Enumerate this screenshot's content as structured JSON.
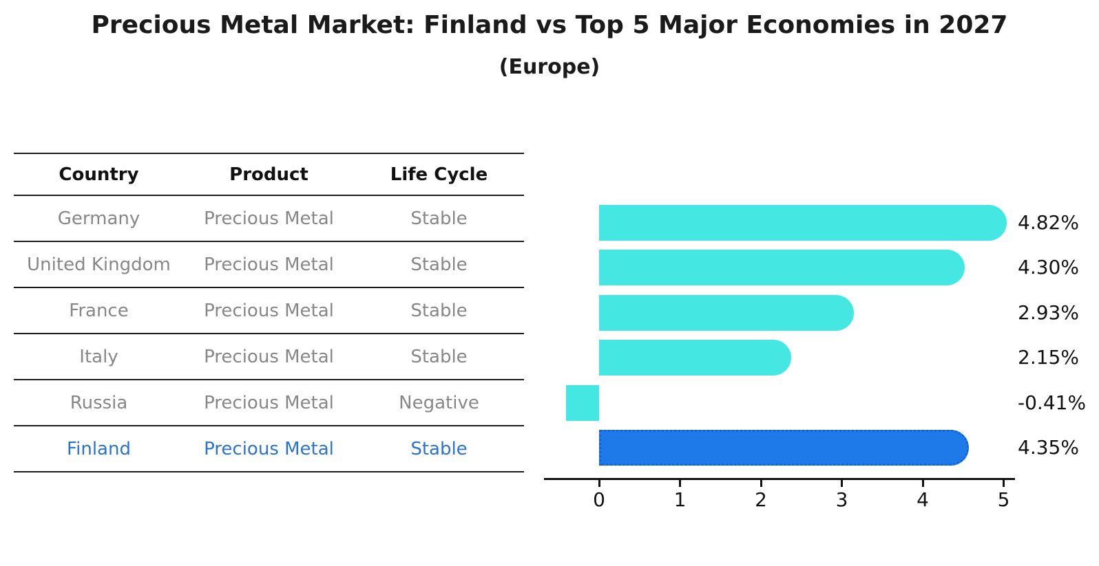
{
  "title": "Precious Metal Market: Finland vs Top 5 Major Economies in 2027",
  "subtitle": "(Europe)",
  "table": {
    "headers": [
      "Country",
      "Product",
      "Life Cycle"
    ],
    "rows": [
      {
        "country": "Germany",
        "product": "Precious Metal",
        "life_cycle": "Stable",
        "highlight": false
      },
      {
        "country": "United Kingdom",
        "product": "Precious Metal",
        "life_cycle": "Stable",
        "highlight": false
      },
      {
        "country": "France",
        "product": "Precious Metal",
        "life_cycle": "Stable",
        "highlight": false
      },
      {
        "country": "Italy",
        "product": "Precious Metal",
        "life_cycle": "Stable",
        "highlight": false
      },
      {
        "country": "Russia",
        "product": "Precious Metal",
        "life_cycle": "Negative",
        "highlight": false
      },
      {
        "country": "Finland",
        "product": "Precious Metal",
        "life_cycle": "Stable",
        "highlight": true
      }
    ]
  },
  "chart_data": {
    "type": "bar",
    "orientation": "horizontal",
    "categories": [
      "Germany",
      "United Kingdom",
      "France",
      "Italy",
      "Russia",
      "Finland"
    ],
    "values": [
      4.82,
      4.3,
      2.93,
      2.15,
      -0.41,
      4.35
    ],
    "value_labels": [
      "4.82%",
      "4.30%",
      "2.93%",
      "2.15%",
      "-0.41%",
      "4.35%"
    ],
    "xticks": [
      "0",
      "1",
      "2",
      "3",
      "4",
      "5"
    ],
    "xlim": [
      -0.68,
      5.14
    ],
    "grid": false,
    "legend": "none",
    "bar_color": "#45e7e2",
    "highlight_color": "#1e79e9",
    "highlight_border_color": "#1263d6",
    "highlight_index": 5
  },
  "colors": {
    "text_dark": "#111111",
    "text_muted": "#878787",
    "finland_text": "#2a73d4",
    "line": "#1a1a1a"
  }
}
